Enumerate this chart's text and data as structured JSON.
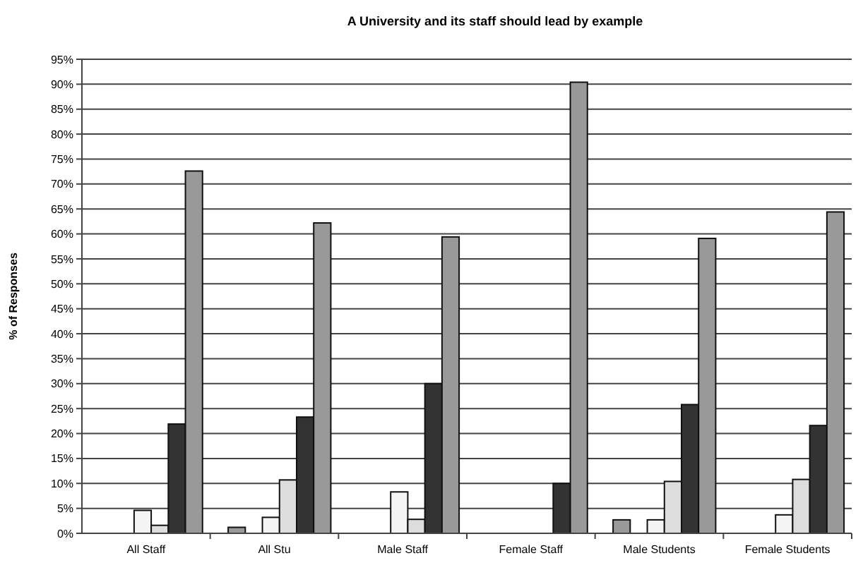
{
  "chart_data": {
    "type": "bar",
    "title": "A University and its staff should lead by example",
    "ylabel": "% of Responses",
    "categories": [
      "All Staff",
      "All Stu",
      "Male Staff",
      "Female Staff",
      "Male Students",
      "Female Students"
    ],
    "series": [
      {
        "color": "#999999",
        "values": [
          0,
          1.2,
          0,
          0,
          2.7,
          0
        ]
      },
      {
        "color": "#ffffff",
        "values": [
          0,
          0,
          0,
          0,
          0,
          0
        ]
      },
      {
        "color": "#f4f4f4",
        "values": [
          4.6,
          3.2,
          8.3,
          0,
          2.7,
          3.7
        ]
      },
      {
        "color": "#dddddd",
        "values": [
          1.6,
          10.7,
          2.8,
          0,
          10.4,
          10.8
        ]
      },
      {
        "color": "#333333",
        "values": [
          21.9,
          23.3,
          30,
          10,
          25.8,
          21.6
        ]
      },
      {
        "color": "#999999",
        "values": [
          72.6,
          62.2,
          59.4,
          90.4,
          59.1,
          64.4
        ]
      }
    ],
    "ylim": [
      0,
      95
    ],
    "yticks": [
      {
        "value": 0,
        "label": "0%"
      },
      {
        "value": 5,
        "label": "5%"
      },
      {
        "value": 10,
        "label": "10%"
      },
      {
        "value": 15,
        "label": "15%"
      },
      {
        "value": 20,
        "label": "20%"
      },
      {
        "value": 25,
        "label": "25%"
      },
      {
        "value": 30,
        "label": "30%"
      },
      {
        "value": 35,
        "label": "35%"
      },
      {
        "value": 40,
        "label": "40%"
      },
      {
        "value": 45,
        "label": "45%"
      },
      {
        "value": 50,
        "label": "50%"
      },
      {
        "value": 55,
        "label": "55%"
      },
      {
        "value": 60,
        "label": "60%"
      },
      {
        "value": 65,
        "label": "65%"
      },
      {
        "value": 70,
        "label": "70%"
      },
      {
        "value": 75,
        "label": "75%"
      },
      {
        "value": 80,
        "label": "80%"
      },
      {
        "value": 85,
        "label": "85%"
      },
      {
        "value": 90,
        "label": "90%"
      },
      {
        "value": 95,
        "label": "95%"
      }
    ],
    "grid": "y"
  }
}
